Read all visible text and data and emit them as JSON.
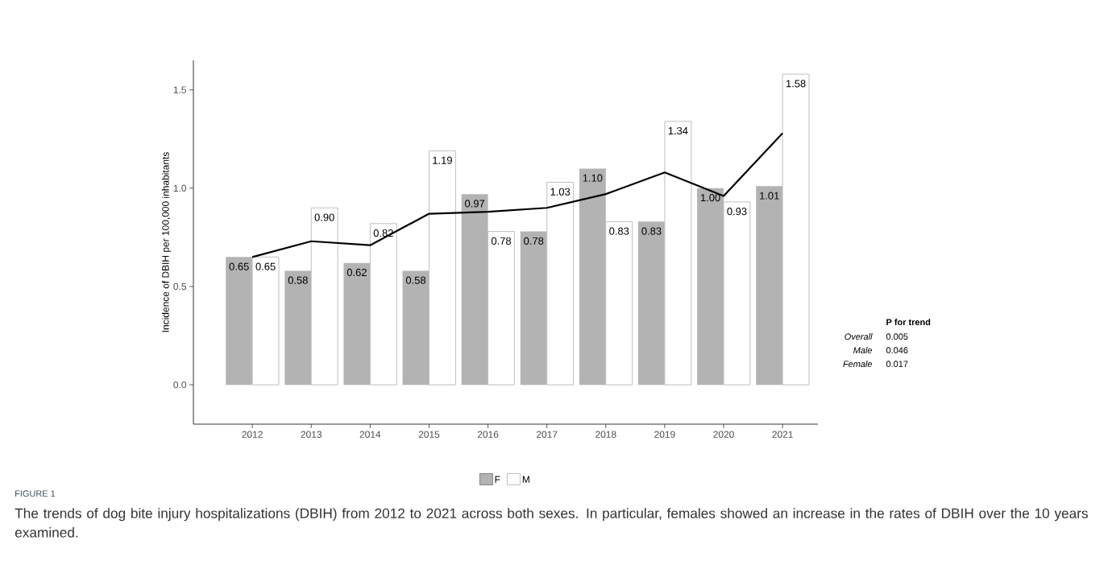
{
  "chart_data": {
    "type": "bar",
    "ylabel": "Incidence of DBIH per 100,000 inhabitants",
    "categories": [
      "2012",
      "2013",
      "2014",
      "2015",
      "2016",
      "2017",
      "2018",
      "2019",
      "2020",
      "2021"
    ],
    "series": [
      {
        "name": "F",
        "color": "#b3b3b3",
        "values": [
          0.65,
          0.58,
          0.62,
          0.58,
          0.97,
          0.78,
          1.1,
          0.83,
          1.0,
          1.01
        ],
        "value_labels": [
          "0.65",
          "0.58",
          "0.62",
          "0.58",
          "0.97",
          "0.78",
          "1.10",
          "0.83",
          "1.00",
          "1.01"
        ]
      },
      {
        "name": "M",
        "color": "#ffffff",
        "values": [
          0.65,
          0.9,
          0.82,
          1.19,
          0.78,
          1.03,
          0.83,
          1.34,
          0.93,
          1.58
        ],
        "value_labels": [
          "0.65",
          "0.90",
          "0.82",
          "1.19",
          "0.78",
          "1.03",
          "0.83",
          "1.34",
          "0.93",
          "1.58"
        ]
      },
      {
        "type": "line",
        "color": "#000000",
        "values": [
          0.65,
          0.73,
          0.71,
          0.87,
          0.88,
          0.9,
          0.97,
          1.08,
          0.96,
          1.28
        ]
      }
    ],
    "ylim": [
      -0.2,
      1.65
    ],
    "yticks": [
      {
        "value": 0,
        "label": "0.0"
      },
      {
        "value": 0.5,
        "label": "0.5"
      },
      {
        "value": 1,
        "label": "1.0"
      },
      {
        "value": 1.5,
        "label": "1.5"
      }
    ],
    "grid": false,
    "legend": "bottom",
    "annotations": [
      "P for trend",
      "Overall",
      "0.005",
      "Male",
      "0.046",
      "Female",
      "0.017",
      "FIGURE 1",
      "The trends of dog bite injury hospitalizations (DBIH) from 2012 to 2021 across both sexes. In particular, females showed an increase in the rates of DBIH over the 10 years examined."
    ]
  }
}
